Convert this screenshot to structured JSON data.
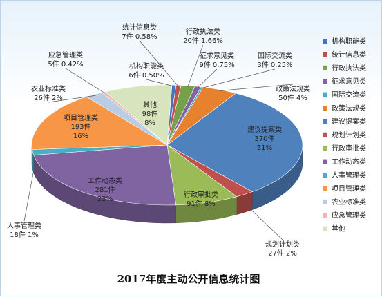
{
  "chart_data": {
    "type": "pie",
    "title": "2017年度主动公开信息统计图",
    "slices": [
      {
        "name": "机构职能类",
        "value": 6,
        "percent": "0.50%",
        "color": "#4472c4",
        "label": "机构职能类\n6件 0.50%"
      },
      {
        "name": "统计信息类",
        "value": 7,
        "percent": "0.58%",
        "color": "#c0504d",
        "label": "统计信息类\n7件 0.58%"
      },
      {
        "name": "行政执法类",
        "value": 20,
        "percent": "1.66%",
        "color": "#77a04b",
        "label": "行政执法类\n20件 1.66%"
      },
      {
        "name": "征求意见类",
        "value": 9,
        "percent": "0.75%",
        "color": "#8064a2",
        "label": "征求意见类\n9件 0.75%"
      },
      {
        "name": "国际交流类",
        "value": 3,
        "percent": "0.25%",
        "color": "#4bacc6",
        "label": "国际交流类\n3件 0.25%"
      },
      {
        "name": "政策法规类",
        "value": 50,
        "percent": "4%",
        "color": "#e6822d",
        "label": "政策法规类\n50件 4%"
      },
      {
        "name": "建议提案类",
        "value": 370,
        "percent": "31%",
        "color": "#4f81bd",
        "label": "建议提案类\n370件\n31%"
      },
      {
        "name": "规划计划类",
        "value": 27,
        "percent": "2%",
        "color": "#c0504d",
        "label": "规划计划类\n27件 2%"
      },
      {
        "name": "行政审批类",
        "value": 91,
        "percent": "8%",
        "color": "#9bbb59",
        "label": "行政审批类\n91件 8%"
      },
      {
        "name": "工作动态类",
        "value": 281,
        "percent": "23%",
        "color": "#8064a2",
        "label": "工作动态类\n281件\n23%"
      },
      {
        "name": "人事管理类",
        "value": 18,
        "percent": "1%",
        "color": "#4bacc6",
        "label": "人事管理类\n18件 1%"
      },
      {
        "name": "项目管理类",
        "value": 193,
        "percent": "16%",
        "color": "#f79646",
        "label": "项目管理类\n193件\n16%"
      },
      {
        "name": "农业标准类",
        "value": 26,
        "percent": "2%",
        "color": "#b9cde5",
        "label": "农业标准类\n26件 2%"
      },
      {
        "name": "应急管理类",
        "value": 5,
        "percent": "0.42%",
        "color": "#f2b4b4",
        "label": "应急管理类\n5件 0.42%"
      },
      {
        "name": "其他",
        "value": 98,
        "percent": "8%",
        "color": "#d7e4bd",
        "label": "其他\n98件\n8%"
      }
    ],
    "legend": {
      "placement": "right",
      "items": [
        "机构职能类",
        "统计信息类",
        "行政执法类",
        "征求意见类",
        "国际交流类",
        "政策法规类",
        "建议提案类",
        "规划计划类",
        "行政审批类",
        "工作动态类",
        "人事管理类",
        "项目管理类",
        "农业标准类",
        "应急管理类",
        "其他"
      ]
    }
  }
}
